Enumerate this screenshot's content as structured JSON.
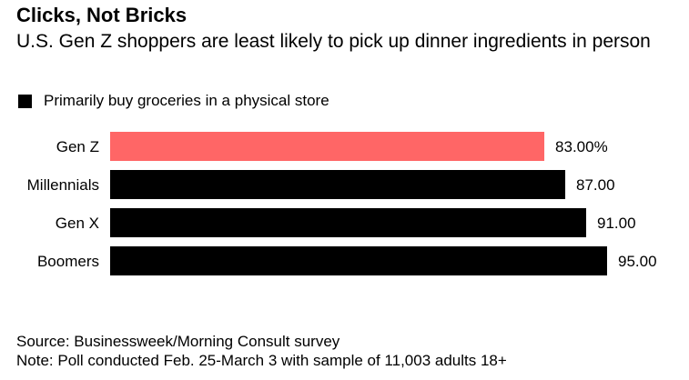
{
  "chart_data": {
    "type": "bar",
    "orientation": "horizontal",
    "title": "Clicks, Not Bricks",
    "subtitle": "U.S. Gen Z shoppers are least likely to pick up dinner ingredients in person",
    "categories": [
      "Gen Z",
      "Millennials",
      "Gen X",
      "Boomers"
    ],
    "series": [
      {
        "name": "Primarily buy groceries in a physical store",
        "values": [
          83,
          87,
          91,
          95
        ],
        "value_labels": [
          "83.00%",
          "87.00",
          "91.00",
          "95.00"
        ],
        "color": "#000000"
      }
    ],
    "highlight": {
      "category": "Gen Z",
      "color": "#ff6666"
    },
    "xlim": [
      0,
      95
    ],
    "grid": false,
    "legend_position": "top-left",
    "xlabel": "",
    "ylabel": ""
  },
  "footer": {
    "source": "Source: Businessweek/Morning Consult survey",
    "note": "Note: Poll conducted Feb. 25-March 3 with sample of 11,003 adults 18+"
  }
}
